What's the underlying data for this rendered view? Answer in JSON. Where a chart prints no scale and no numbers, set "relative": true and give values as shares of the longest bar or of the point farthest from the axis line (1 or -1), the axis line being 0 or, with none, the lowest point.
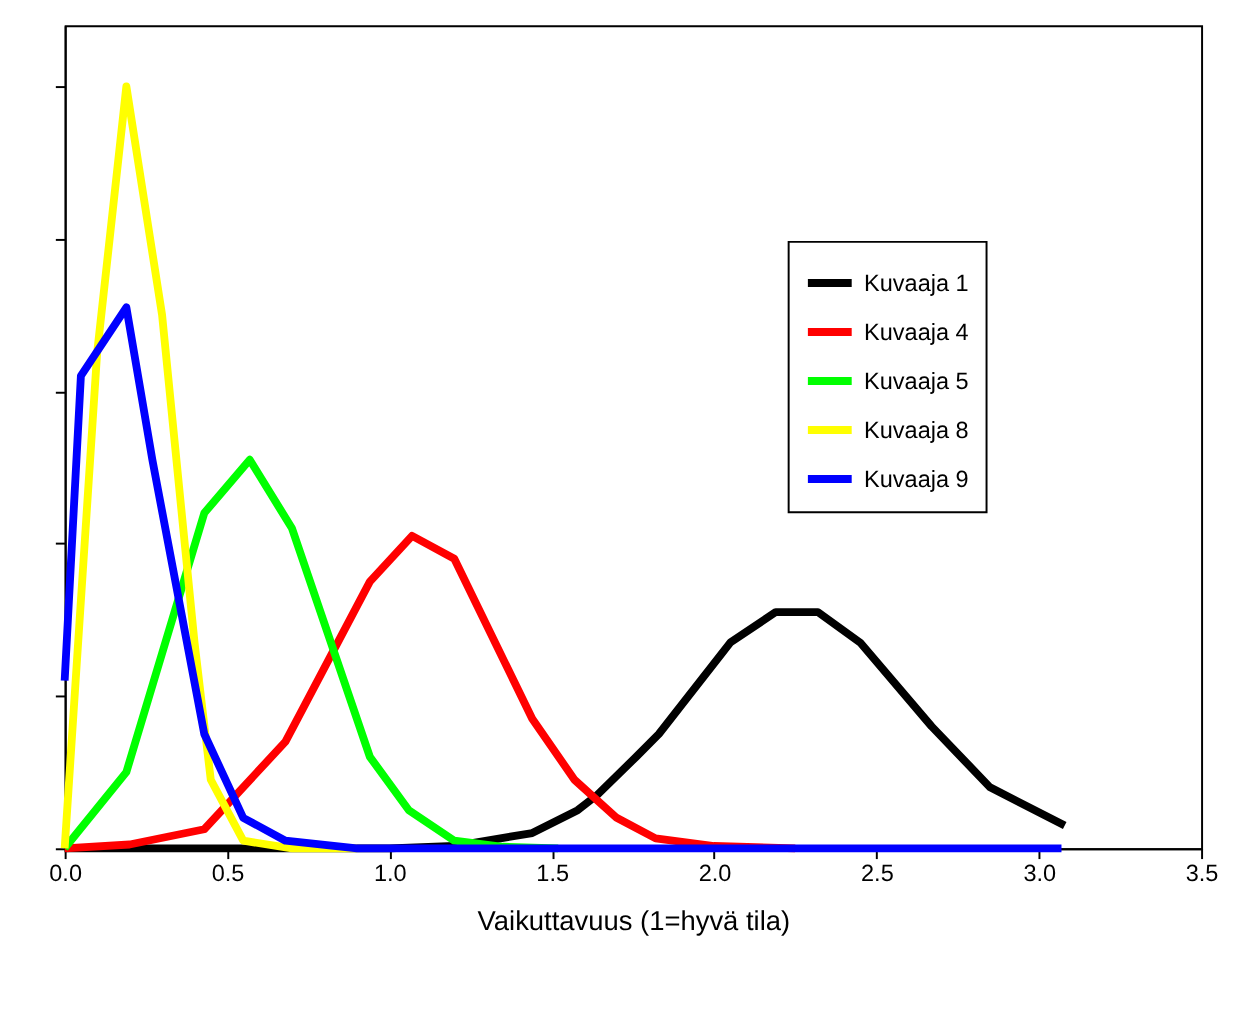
{
  "chart_data": {
    "type": "line",
    "relative": true,
    "xlabel": "Vaikuttavuus    (1=hyvä tila)",
    "xlim": [
      0,
      3.5
    ],
    "xticks": [
      {
        "value": 0,
        "label": "0.0"
      },
      {
        "value": 0.5,
        "label": "0.5"
      },
      {
        "value": 1,
        "label": "1.0"
      },
      {
        "value": 1.5,
        "label": "1.5"
      },
      {
        "value": 2,
        "label": "2.0"
      },
      {
        "value": 2.5,
        "label": "2.5"
      },
      {
        "value": 3,
        "label": "3.0"
      },
      {
        "value": 3.5,
        "label": "3.5"
      }
    ],
    "tick_labels": "x",
    "grid": false,
    "legend": "top right",
    "marker": "none",
    "line_style": "solid",
    "series": [
      {
        "name": "Kuvaaja 1",
        "color": "#000000",
        "x": [
          0,
          0.5,
          1.0,
          1.2,
          1.44,
          1.58,
          1.64,
          1.76,
          1.83,
          2.05,
          2.19,
          2.32,
          2.45,
          2.67,
          2.85,
          3.08
        ],
        "values": [
          0,
          0,
          0,
          0.003,
          0.02,
          0.05,
          0.07,
          0.12,
          0.15,
          0.27,
          0.31,
          0.31,
          0.27,
          0.16,
          0.08,
          0.03
        ]
      },
      {
        "name": "Kuvaaja 4",
        "color": "#ff0000",
        "x": [
          0,
          0.2,
          0.43,
          0.68,
          0.94,
          1.07,
          1.2,
          1.44,
          1.57,
          1.7,
          1.82,
          2.0,
          2.25
        ],
        "values": [
          0,
          0.005,
          0.025,
          0.14,
          0.35,
          0.41,
          0.38,
          0.17,
          0.09,
          0.04,
          0.013,
          0.003,
          0
        ]
      },
      {
        "name": "Kuvaaja 5",
        "color": "#00ff00",
        "x": [
          0,
          0.19,
          0.43,
          0.57,
          0.7,
          0.94,
          1.06,
          1.2,
          1.35,
          1.52
        ],
        "values": [
          0,
          0.1,
          0.44,
          0.51,
          0.42,
          0.12,
          0.05,
          0.01,
          0.002,
          0
        ]
      },
      {
        "name": "Kuvaaja 8",
        "color": "#ffff00",
        "x": [
          0,
          0.1,
          0.19,
          0.3,
          0.4,
          0.45,
          0.55,
          0.7,
          0.9
        ],
        "values": [
          0,
          0.65,
          1.0,
          0.7,
          0.27,
          0.09,
          0.01,
          0,
          0
        ]
      },
      {
        "name": "Kuvaaja 9",
        "color": "#0000ff",
        "x": [
          0,
          0.05,
          0.19,
          0.27,
          0.43,
          0.55,
          0.68,
          0.9,
          1.5,
          2.0,
          2.5,
          3.07
        ],
        "values": [
          0.22,
          0.62,
          0.71,
          0.51,
          0.15,
          0.04,
          0.01,
          0,
          0,
          0,
          0,
          0
        ]
      }
    ]
  }
}
